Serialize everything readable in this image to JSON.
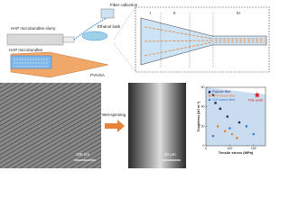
{
  "figure": {
    "labels": {
      "fiber_collection": "Fiber collection",
      "slurry": "HAP microbundles slurry",
      "ethanol_bath": "Ethanol bath",
      "microbundles": "HAP microbundles",
      "pva_sa": "PVA/SA",
      "zone1": "I",
      "zone2": "II",
      "zone3": "III",
      "scale_tem": "100 nm",
      "wet_spinning": "Wet-spinning",
      "scale_sem": "30 μm"
    }
  },
  "chart_data": {
    "type": "scatter",
    "xlabel": "Tensile stress (MPa)",
    "ylabel": "Toughness (MJ m⁻³)",
    "xlim": [
      0,
      250
    ],
    "ylim": [
      0,
      60
    ],
    "xticks": [
      0,
      100,
      200
    ],
    "yticks": [
      0,
      20,
      40,
      60
    ],
    "series": [
      {
        "name": "Polymer fiber",
        "color": "#1f2a5a",
        "x": [
          15,
          30,
          40,
          60,
          90,
          140
        ],
        "values": [
          55,
          52,
          44,
          38,
          30,
          24
        ]
      },
      {
        "name": "HAP-based fiber",
        "color": "#e8833a",
        "x": [
          50,
          80,
          110,
          130
        ],
        "values": [
          20,
          15,
          12,
          8
        ]
      },
      {
        "name": "CNT-based fiber",
        "color": "#3a7bd5",
        "x": [
          30,
          100,
          170,
          200
        ],
        "values": [
          10,
          18,
          20,
          12
        ]
      },
      {
        "name": "This work",
        "color": "#e02020",
        "x": [
          215
        ],
        "values": [
          52
        ]
      }
    ]
  }
}
